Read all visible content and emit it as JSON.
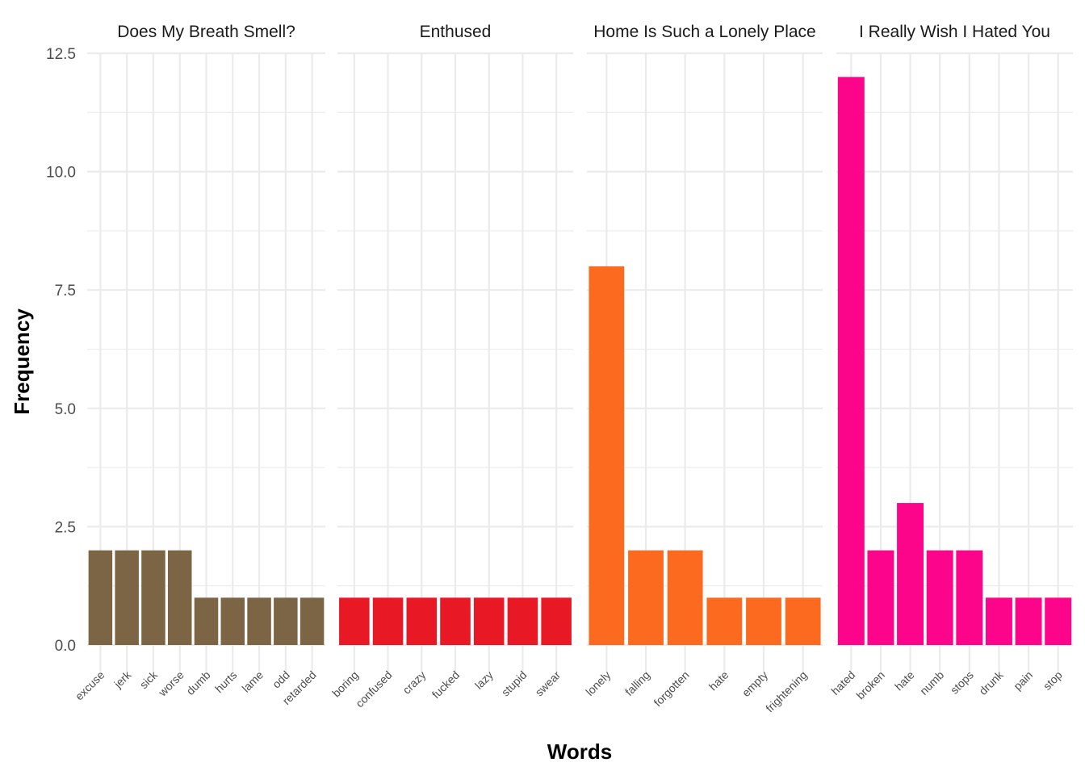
{
  "chart_data": {
    "type": "bar",
    "xlabel": "Words",
    "ylabel": "Frequency",
    "ylim": [
      0,
      12.5
    ],
    "yticks": [
      "0.0",
      "2.5",
      "5.0",
      "7.5",
      "10.0",
      "12.5"
    ],
    "grid": true,
    "legend": "none",
    "facets": [
      {
        "title": "Does My Breath Smell?",
        "color": "#7B6545",
        "categories": [
          "excuse",
          "jerk",
          "sick",
          "worse",
          "dumb",
          "hurts",
          "lame",
          "odd",
          "retarded"
        ],
        "values": [
          2,
          2,
          2,
          2,
          1,
          1,
          1,
          1,
          1
        ]
      },
      {
        "title": "Enthused",
        "color": "#E81824",
        "categories": [
          "boring",
          "confused",
          "crazy",
          "fucked",
          "lazy",
          "stupid",
          "swear"
        ],
        "values": [
          1,
          1,
          1,
          1,
          1,
          1,
          1
        ]
      },
      {
        "title": "Home Is Such a Lonely Place",
        "color": "#FB6A1F",
        "categories": [
          "lonely",
          "falling",
          "forgotten",
          "hate",
          "empty",
          "frightening"
        ],
        "values": [
          8,
          2,
          2,
          1,
          1,
          1
        ]
      },
      {
        "title": "I Really Wish I Hated You",
        "color": "#FD058A",
        "categories": [
          "hated",
          "broken",
          "hate",
          "numb",
          "stops",
          "drunk",
          "pain",
          "stop"
        ],
        "values": [
          12,
          2,
          3,
          2,
          2,
          1,
          1,
          1
        ]
      }
    ]
  }
}
